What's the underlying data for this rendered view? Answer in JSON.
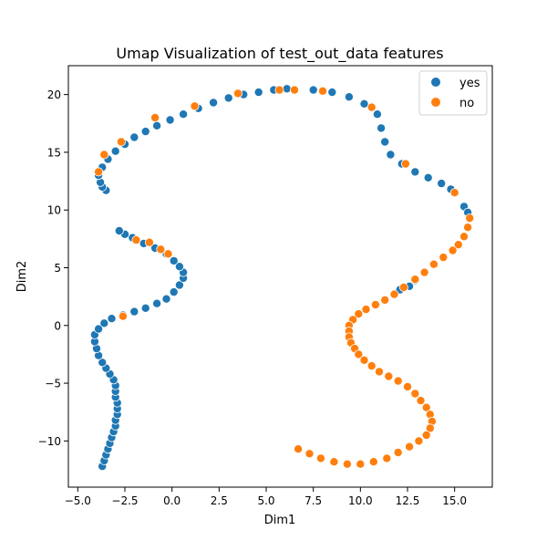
{
  "chart_data": {
    "type": "scatter",
    "title": "Umap Visualization of test_out_data features",
    "xlabel": "Dim1",
    "ylabel": "Dim2",
    "xlim": [
      -5.5,
      17.0
    ],
    "ylim": [
      -14.0,
      22.5
    ],
    "xticks": [
      -5.0,
      -2.5,
      0.0,
      2.5,
      5.0,
      7.5,
      10.0,
      12.5,
      15.0
    ],
    "xtick_labels": [
      "−5.0",
      "−2.5",
      "0.0",
      "2.5",
      "5.0",
      "7.5",
      "10.0",
      "12.5",
      "15.0"
    ],
    "yticks": [
      -10,
      -5,
      0,
      5,
      10,
      15,
      20
    ],
    "ytick_labels": [
      "−10",
      "−5",
      "0",
      "5",
      "10",
      "15",
      "20"
    ],
    "grid": false,
    "legend_position": "top-right",
    "series": [
      {
        "name": "yes",
        "color": "#1f77b4",
        "points": [
          [
            -3.7,
            -12.2
          ],
          [
            -3.6,
            -11.7
          ],
          [
            -3.5,
            -11.2
          ],
          [
            -3.4,
            -10.7
          ],
          [
            -3.3,
            -10.2
          ],
          [
            -3.2,
            -9.7
          ],
          [
            -3.1,
            -9.2
          ],
          [
            -3.0,
            -8.7
          ],
          [
            -3.0,
            -8.2
          ],
          [
            -2.9,
            -7.7
          ],
          [
            -2.9,
            -7.2
          ],
          [
            -2.9,
            -6.7
          ],
          [
            -3.0,
            -6.2
          ],
          [
            -3.0,
            -5.7
          ],
          [
            -3.0,
            -5.2
          ],
          [
            -3.1,
            -4.7
          ],
          [
            -3.3,
            -4.2
          ],
          [
            -3.5,
            -3.7
          ],
          [
            -3.7,
            -3.2
          ],
          [
            -3.9,
            -2.6
          ],
          [
            -4.0,
            -2.0
          ],
          [
            -4.1,
            -1.4
          ],
          [
            -4.1,
            -0.8
          ],
          [
            -3.9,
            -0.3
          ],
          [
            -3.6,
            0.2
          ],
          [
            -3.2,
            0.6
          ],
          [
            -2.6,
            0.9
          ],
          [
            -2.0,
            1.2
          ],
          [
            -1.4,
            1.5
          ],
          [
            -0.8,
            1.9
          ],
          [
            -0.3,
            2.3
          ],
          [
            0.1,
            2.9
          ],
          [
            0.4,
            3.5
          ],
          [
            0.6,
            4.1
          ],
          [
            0.6,
            4.6
          ],
          [
            0.4,
            5.1
          ],
          [
            0.1,
            5.6
          ],
          [
            -0.3,
            6.2
          ],
          [
            -0.9,
            6.7
          ],
          [
            -1.5,
            7.1
          ],
          [
            -2.1,
            7.6
          ],
          [
            -2.5,
            7.9
          ],
          [
            -2.8,
            8.2
          ],
          [
            -3.5,
            11.7
          ],
          [
            -3.7,
            12.0
          ],
          [
            -3.8,
            12.4
          ],
          [
            -3.9,
            13.0
          ],
          [
            -3.7,
            13.7
          ],
          [
            -3.4,
            14.4
          ],
          [
            -3.0,
            15.1
          ],
          [
            -2.5,
            15.7
          ],
          [
            -2.0,
            16.3
          ],
          [
            -1.4,
            16.8
          ],
          [
            -0.8,
            17.3
          ],
          [
            -0.1,
            17.8
          ],
          [
            0.6,
            18.3
          ],
          [
            1.4,
            18.8
          ],
          [
            2.2,
            19.3
          ],
          [
            3.0,
            19.7
          ],
          [
            3.8,
            20.0
          ],
          [
            4.6,
            20.2
          ],
          [
            5.4,
            20.4
          ],
          [
            6.1,
            20.5
          ],
          [
            7.5,
            20.4
          ],
          [
            8.5,
            20.2
          ],
          [
            9.4,
            19.8
          ],
          [
            10.2,
            19.2
          ],
          [
            10.9,
            18.3
          ],
          [
            11.1,
            17.1
          ],
          [
            11.3,
            15.9
          ],
          [
            11.6,
            14.8
          ],
          [
            12.2,
            14.0
          ],
          [
            12.9,
            13.3
          ],
          [
            13.6,
            12.8
          ],
          [
            14.3,
            12.3
          ],
          [
            14.8,
            11.8
          ],
          [
            15.5,
            10.3
          ],
          [
            15.7,
            9.8
          ],
          [
            12.9,
            3.9
          ],
          [
            12.1,
            3.1
          ],
          [
            12.6,
            3.4
          ]
        ]
      },
      {
        "name": "no",
        "color": "#ff7f0e",
        "points": [
          [
            -2.6,
            0.8
          ],
          [
            -1.9,
            7.4
          ],
          [
            -1.2,
            7.2
          ],
          [
            -0.6,
            6.6
          ],
          [
            -0.2,
            6.2
          ],
          [
            -0.9,
            18.0
          ],
          [
            1.2,
            19.0
          ],
          [
            -3.9,
            13.3
          ],
          [
            -3.6,
            14.8
          ],
          [
            -2.7,
            15.9
          ],
          [
            3.5,
            20.1
          ],
          [
            5.7,
            20.4
          ],
          [
            6.5,
            20.4
          ],
          [
            8.0,
            20.3
          ],
          [
            10.6,
            18.9
          ],
          [
            12.4,
            14.0
          ],
          [
            15.0,
            11.5
          ],
          [
            15.8,
            9.3
          ],
          [
            15.7,
            8.5
          ],
          [
            15.5,
            7.7
          ],
          [
            15.2,
            7.0
          ],
          [
            14.9,
            6.5
          ],
          [
            14.4,
            5.9
          ],
          [
            13.9,
            5.3
          ],
          [
            13.4,
            4.6
          ],
          [
            12.9,
            4.0
          ],
          [
            12.3,
            3.3
          ],
          [
            11.8,
            2.7
          ],
          [
            11.3,
            2.2
          ],
          [
            10.8,
            1.8
          ],
          [
            10.3,
            1.4
          ],
          [
            9.9,
            1.0
          ],
          [
            9.6,
            0.5
          ],
          [
            9.4,
            0.0
          ],
          [
            9.4,
            -0.5
          ],
          [
            9.4,
            -1.0
          ],
          [
            9.5,
            -1.5
          ],
          [
            9.7,
            -2.0
          ],
          [
            9.9,
            -2.5
          ],
          [
            10.2,
            -3.0
          ],
          [
            10.6,
            -3.5
          ],
          [
            11.0,
            -4.0
          ],
          [
            11.5,
            -4.4
          ],
          [
            12.0,
            -4.8
          ],
          [
            12.5,
            -5.3
          ],
          [
            12.9,
            -5.9
          ],
          [
            13.2,
            -6.5
          ],
          [
            13.5,
            -7.1
          ],
          [
            13.7,
            -7.7
          ],
          [
            13.8,
            -8.3
          ],
          [
            13.7,
            -8.9
          ],
          [
            13.5,
            -9.5
          ],
          [
            13.1,
            -10.0
          ],
          [
            12.6,
            -10.5
          ],
          [
            12.0,
            -11.0
          ],
          [
            11.4,
            -11.5
          ],
          [
            10.7,
            -11.8
          ],
          [
            10.0,
            -12.0
          ],
          [
            9.3,
            -12.0
          ],
          [
            8.6,
            -11.8
          ],
          [
            7.9,
            -11.5
          ],
          [
            7.3,
            -11.1
          ],
          [
            6.7,
            -10.7
          ]
        ]
      }
    ]
  }
}
